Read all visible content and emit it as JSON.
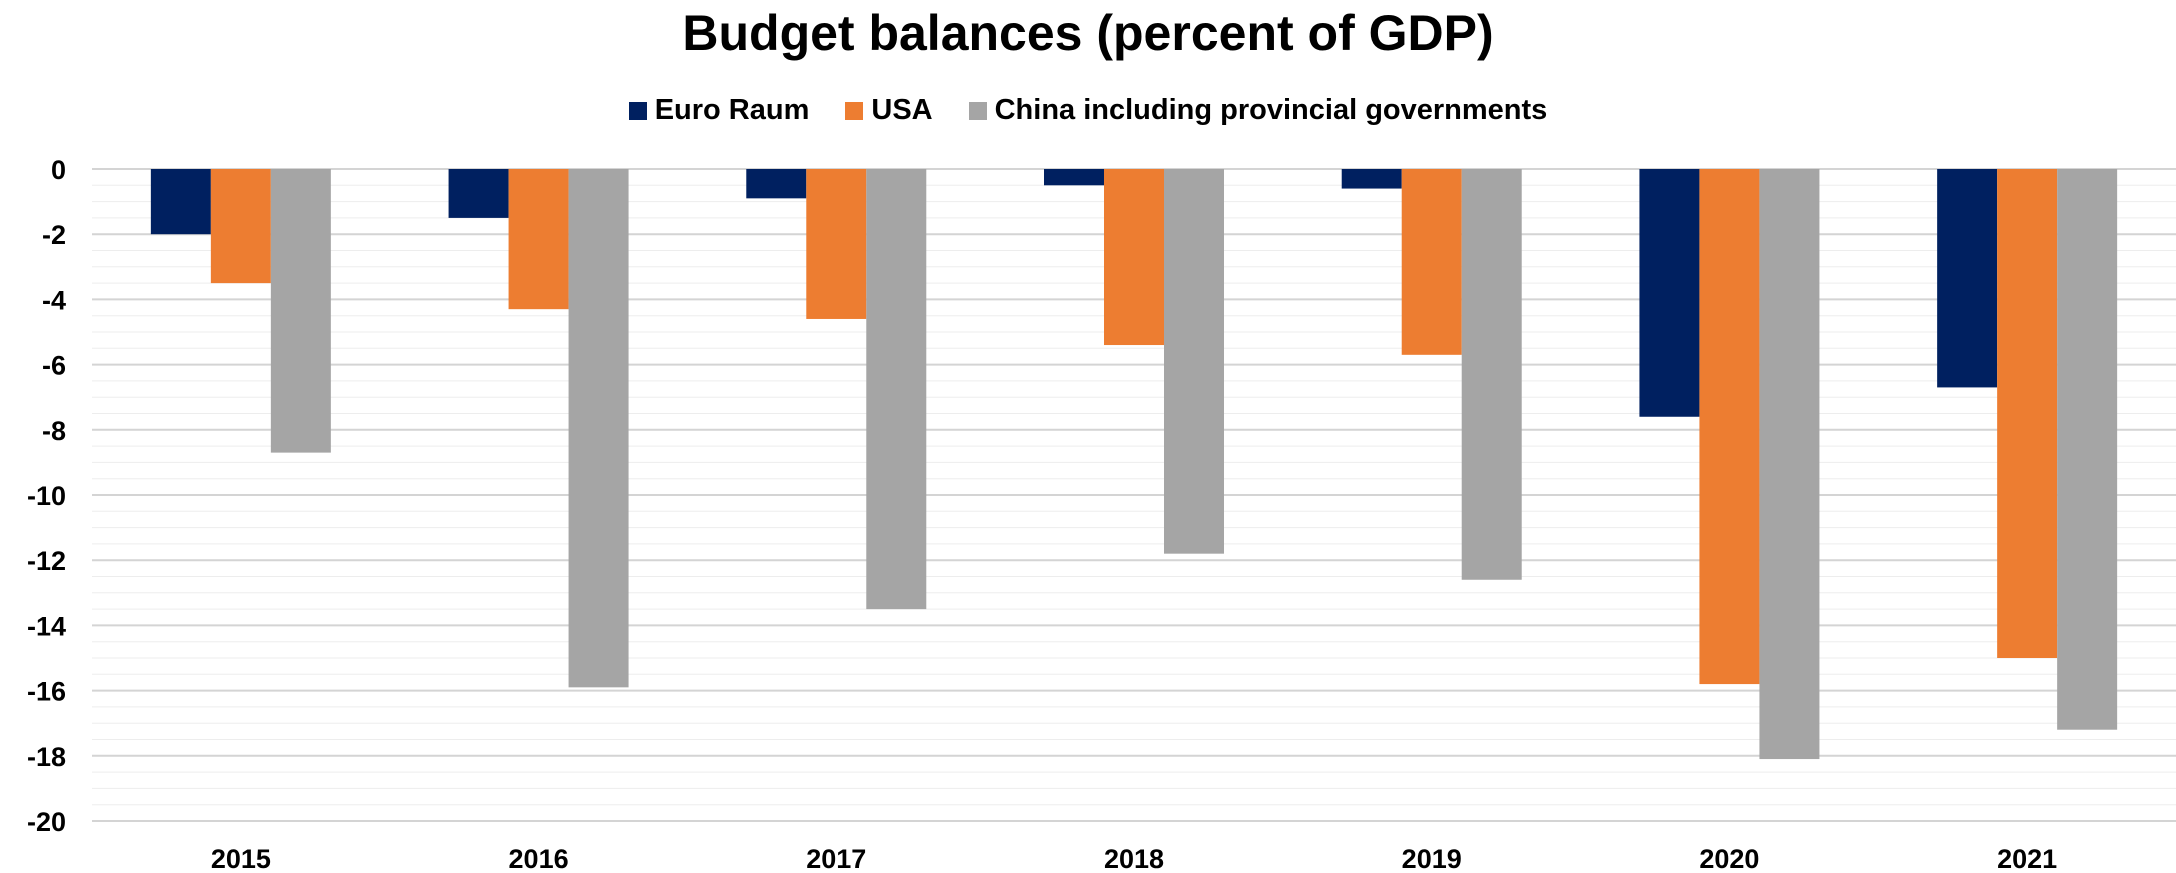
{
  "chart_data": {
    "type": "bar",
    "title": "Budget balances (percent of GDP)",
    "xlabel": "",
    "ylabel": "",
    "categories": [
      "2015",
      "2016",
      "2017",
      "2018",
      "2019",
      "2020",
      "2021"
    ],
    "series": [
      {
        "name": "Euro Raum",
        "color": "#002060",
        "values": [
          -2.0,
          -1.5,
          -0.9,
          -0.5,
          -0.6,
          -7.6,
          -6.7
        ]
      },
      {
        "name": "USA",
        "color": "#ED7D31",
        "values": [
          -3.5,
          -4.3,
          -4.6,
          -5.4,
          -5.7,
          -15.8,
          -15.0
        ]
      },
      {
        "name": "China including provincial governments",
        "color": "#A5A5A5",
        "values": [
          -8.7,
          -15.9,
          -13.5,
          -11.8,
          -12.6,
          -18.1,
          -17.2
        ]
      }
    ],
    "ylim": [
      -20,
      0
    ],
    "yticks": [
      "0",
      "-2",
      "-4",
      "-6",
      "-8",
      "-10",
      "-12",
      "-14",
      "-16",
      "-18",
      "-20"
    ],
    "grid": true,
    "legend_position": "top-center"
  }
}
